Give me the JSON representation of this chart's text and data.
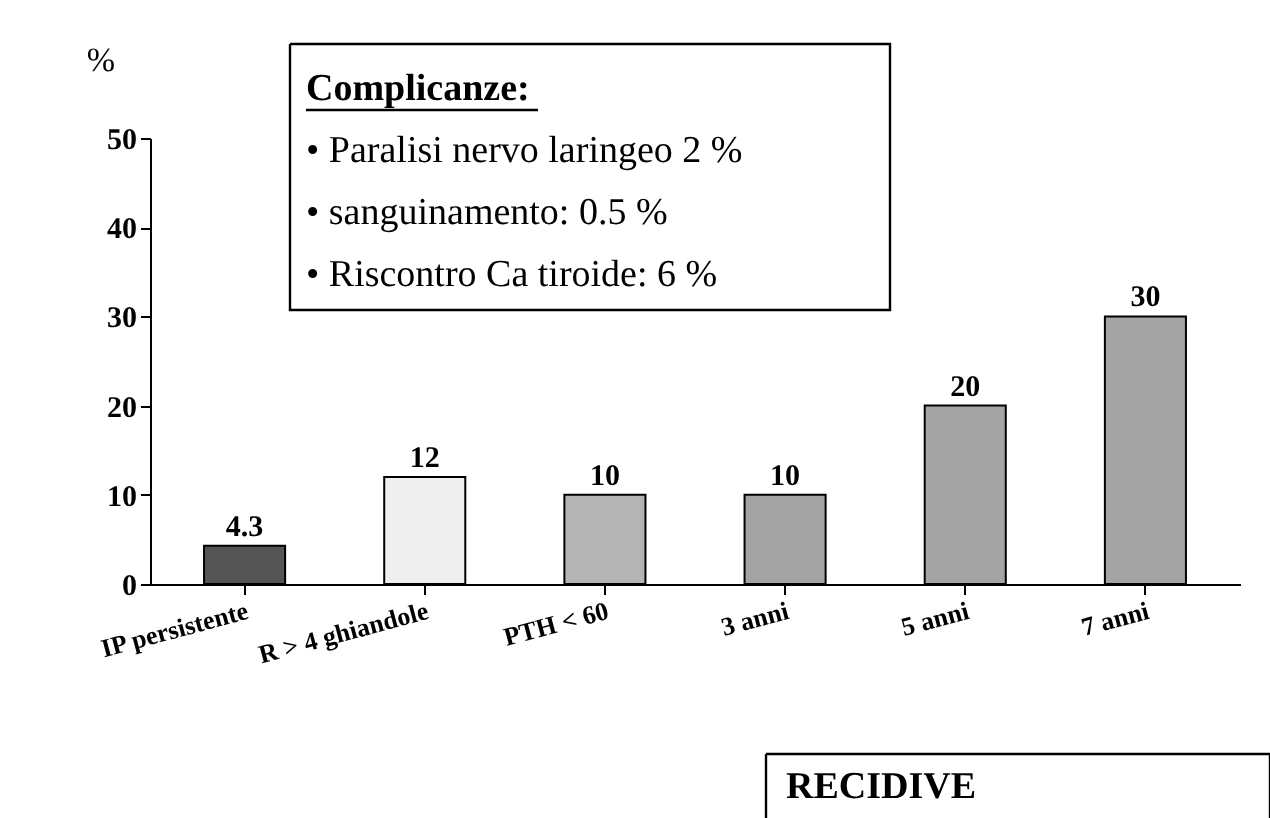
{
  "chart_data": {
    "type": "bar",
    "categories": [
      "IP persistente",
      "R > 4 ghiandole",
      "PTH < 60",
      "3 anni",
      "5 anni",
      "7 anni"
    ],
    "values": [
      4.3,
      12,
      10,
      10,
      20,
      30
    ],
    "colors": [
      "#555555",
      "#efefef",
      "#b4b4b4",
      "#a4a4a4",
      "#a4a4a4",
      "#a4a4a4"
    ],
    "ylabel": "%",
    "ylim": [
      0,
      50
    ],
    "yticks": [
      0,
      10,
      20,
      30,
      40,
      50
    ],
    "grid": false,
    "data_labels": true,
    "annotations": [
      "Complicanze:",
      "• Paralisi nervo laringeo 2 %",
      "• sanguinamento: 0.5 %",
      "• Riscontro Ca tiroide: 6 %",
      "RECIDIVE"
    ]
  }
}
